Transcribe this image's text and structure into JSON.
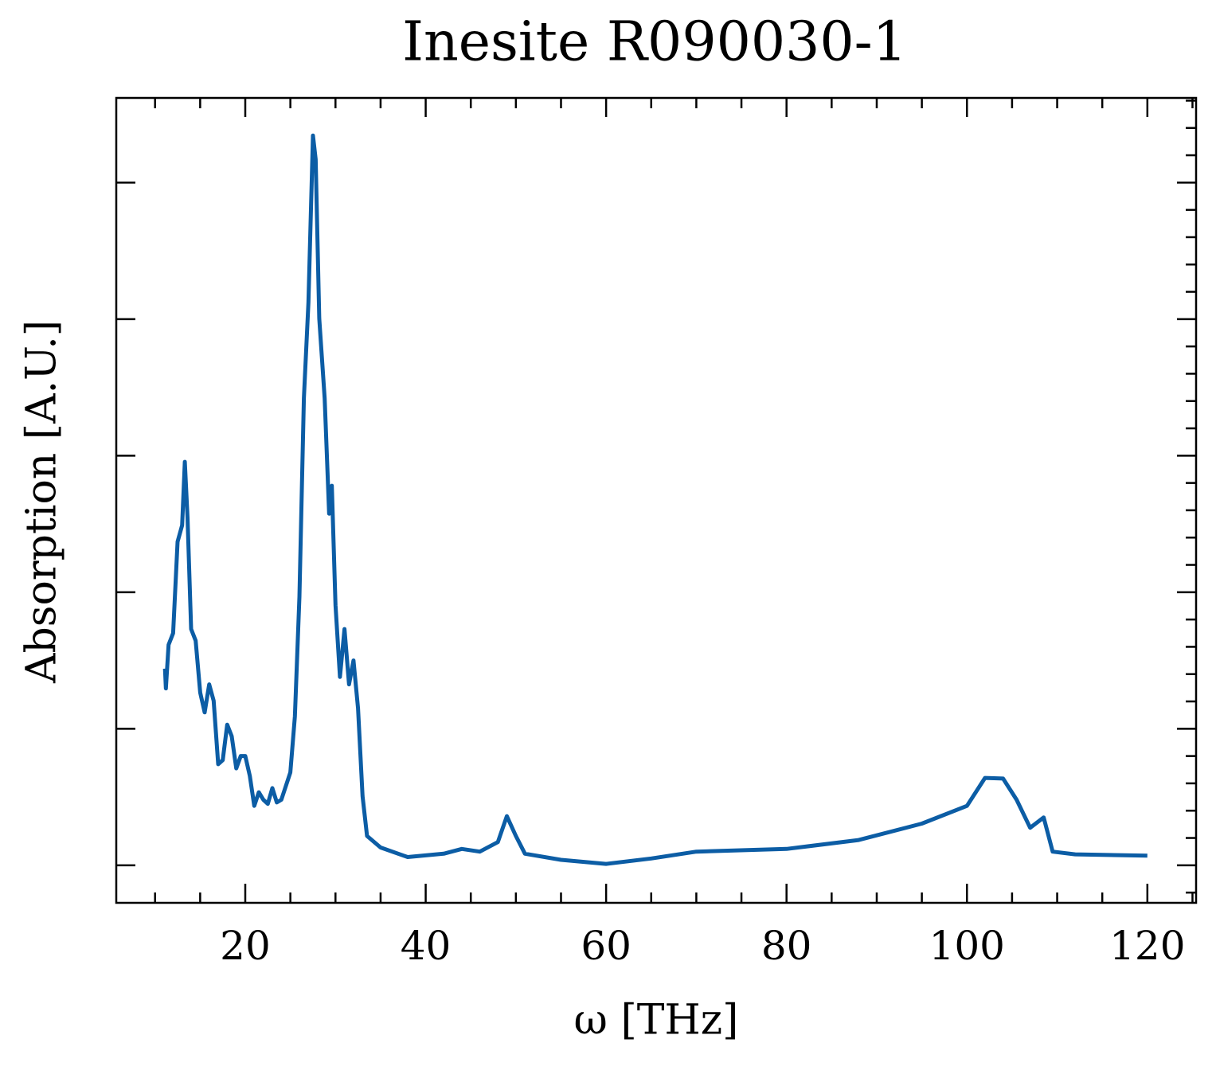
{
  "chart_data": {
    "type": "line",
    "title": "Inesite R090030-1",
    "x_label": "ω [THz]",
    "y_label": "Absorption [A.U.]",
    "x": [
      11.1,
      11.2,
      11.5,
      12,
      12.5,
      13,
      13.3,
      13.6,
      14,
      14.5,
      15,
      15.5,
      16,
      16.5,
      17,
      17.5,
      18,
      18.5,
      19,
      19.5,
      20,
      20.5,
      21,
      21.5,
      22,
      22.5,
      23,
      23.5,
      24,
      25,
      25.5,
      26,
      26.5,
      27,
      27.5,
      27.8,
      28.2,
      28.8,
      29.3,
      29.6,
      30,
      30.5,
      31,
      31.5,
      32,
      32.5,
      33,
      33.5,
      35,
      38,
      42,
      44,
      46,
      48,
      49,
      50,
      51,
      55,
      60,
      65,
      70,
      80,
      88,
      95,
      100,
      102,
      104,
      105.5,
      107,
      108.5,
      109.5,
      112,
      120
    ],
    "series": [
      {
        "color": "#0c5da5",
        "values": [
          0.288,
          0.259,
          0.323,
          0.34,
          0.474,
          0.498,
          0.591,
          0.509,
          0.346,
          0.329,
          0.253,
          0.224,
          0.265,
          0.241,
          0.148,
          0.154,
          0.206,
          0.189,
          0.142,
          0.16,
          0.16,
          0.131,
          0.087,
          0.107,
          0.096,
          0.09,
          0.113,
          0.092,
          0.096,
          0.136,
          0.218,
          0.393,
          0.684,
          0.824,
          1.069,
          1.034,
          0.801,
          0.684,
          0.515,
          0.556,
          0.381,
          0.276,
          0.346,
          0.265,
          0.3,
          0.23,
          0.101,
          0.043,
          0.026,
          0.012,
          0.017,
          0.024,
          0.02,
          0.034,
          0.072,
          0.043,
          0.017,
          0.008,
          0.002,
          0.01,
          0.02,
          0.024,
          0.037,
          0.061,
          0.087,
          0.128,
          0.127,
          0.096,
          0.055,
          0.07,
          0.02,
          0.016,
          0.014
        ]
      }
    ],
    "xlim": [
      5.7,
      125.4
    ],
    "xticks": [
      20,
      40,
      60,
      80,
      100,
      120
    ],
    "ylim": [
      -0.055,
      1.124
    ],
    "yticks": [
      0,
      0.2,
      0.4,
      0.6,
      0.8,
      1.0
    ]
  }
}
